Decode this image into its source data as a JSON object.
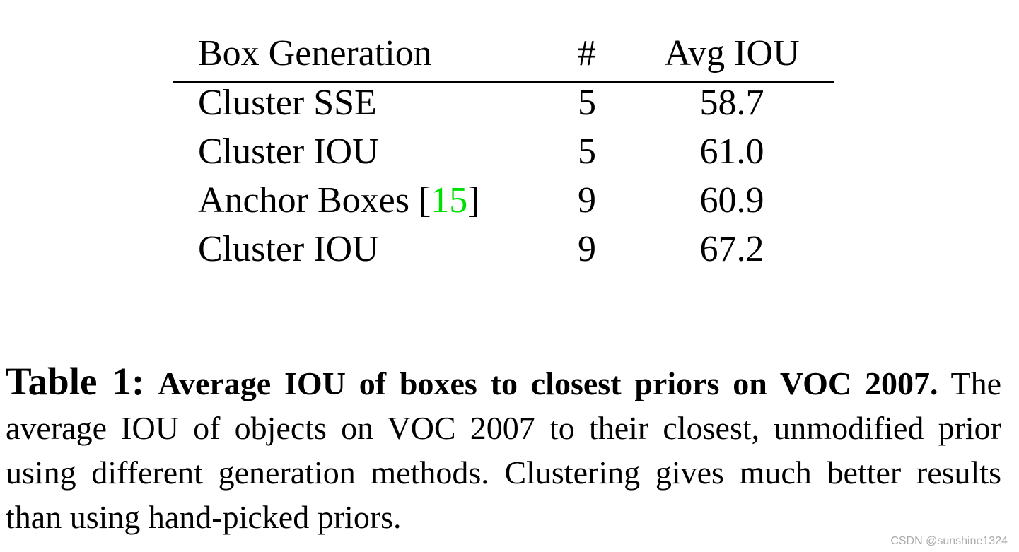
{
  "table": {
    "header": [
      "Box Generation",
      "#",
      "Avg IOU"
    ],
    "rows": [
      [
        [
          "Cluster SSE"
        ],
        "5",
        "58.7"
      ],
      [
        [
          "Cluster IOU"
        ],
        "5",
        "61.0"
      ],
      [
        [
          "Anchor Boxes [",
          "15",
          "]"
        ],
        "9",
        "60.9"
      ],
      [
        [
          "Cluster IOU"
        ],
        "9",
        "67.2"
      ]
    ]
  },
  "caption": {
    "label": "Table 1:",
    "title": "Average IOU of boxes to closest priors on VOC 2007.",
    "body": "The average IOU of objects on VOC 2007 to their closest, unmodified prior using different generation methods.  Clustering gives much better results than using hand-picked priors."
  },
  "watermark": "CSDN @sunshine1324"
}
